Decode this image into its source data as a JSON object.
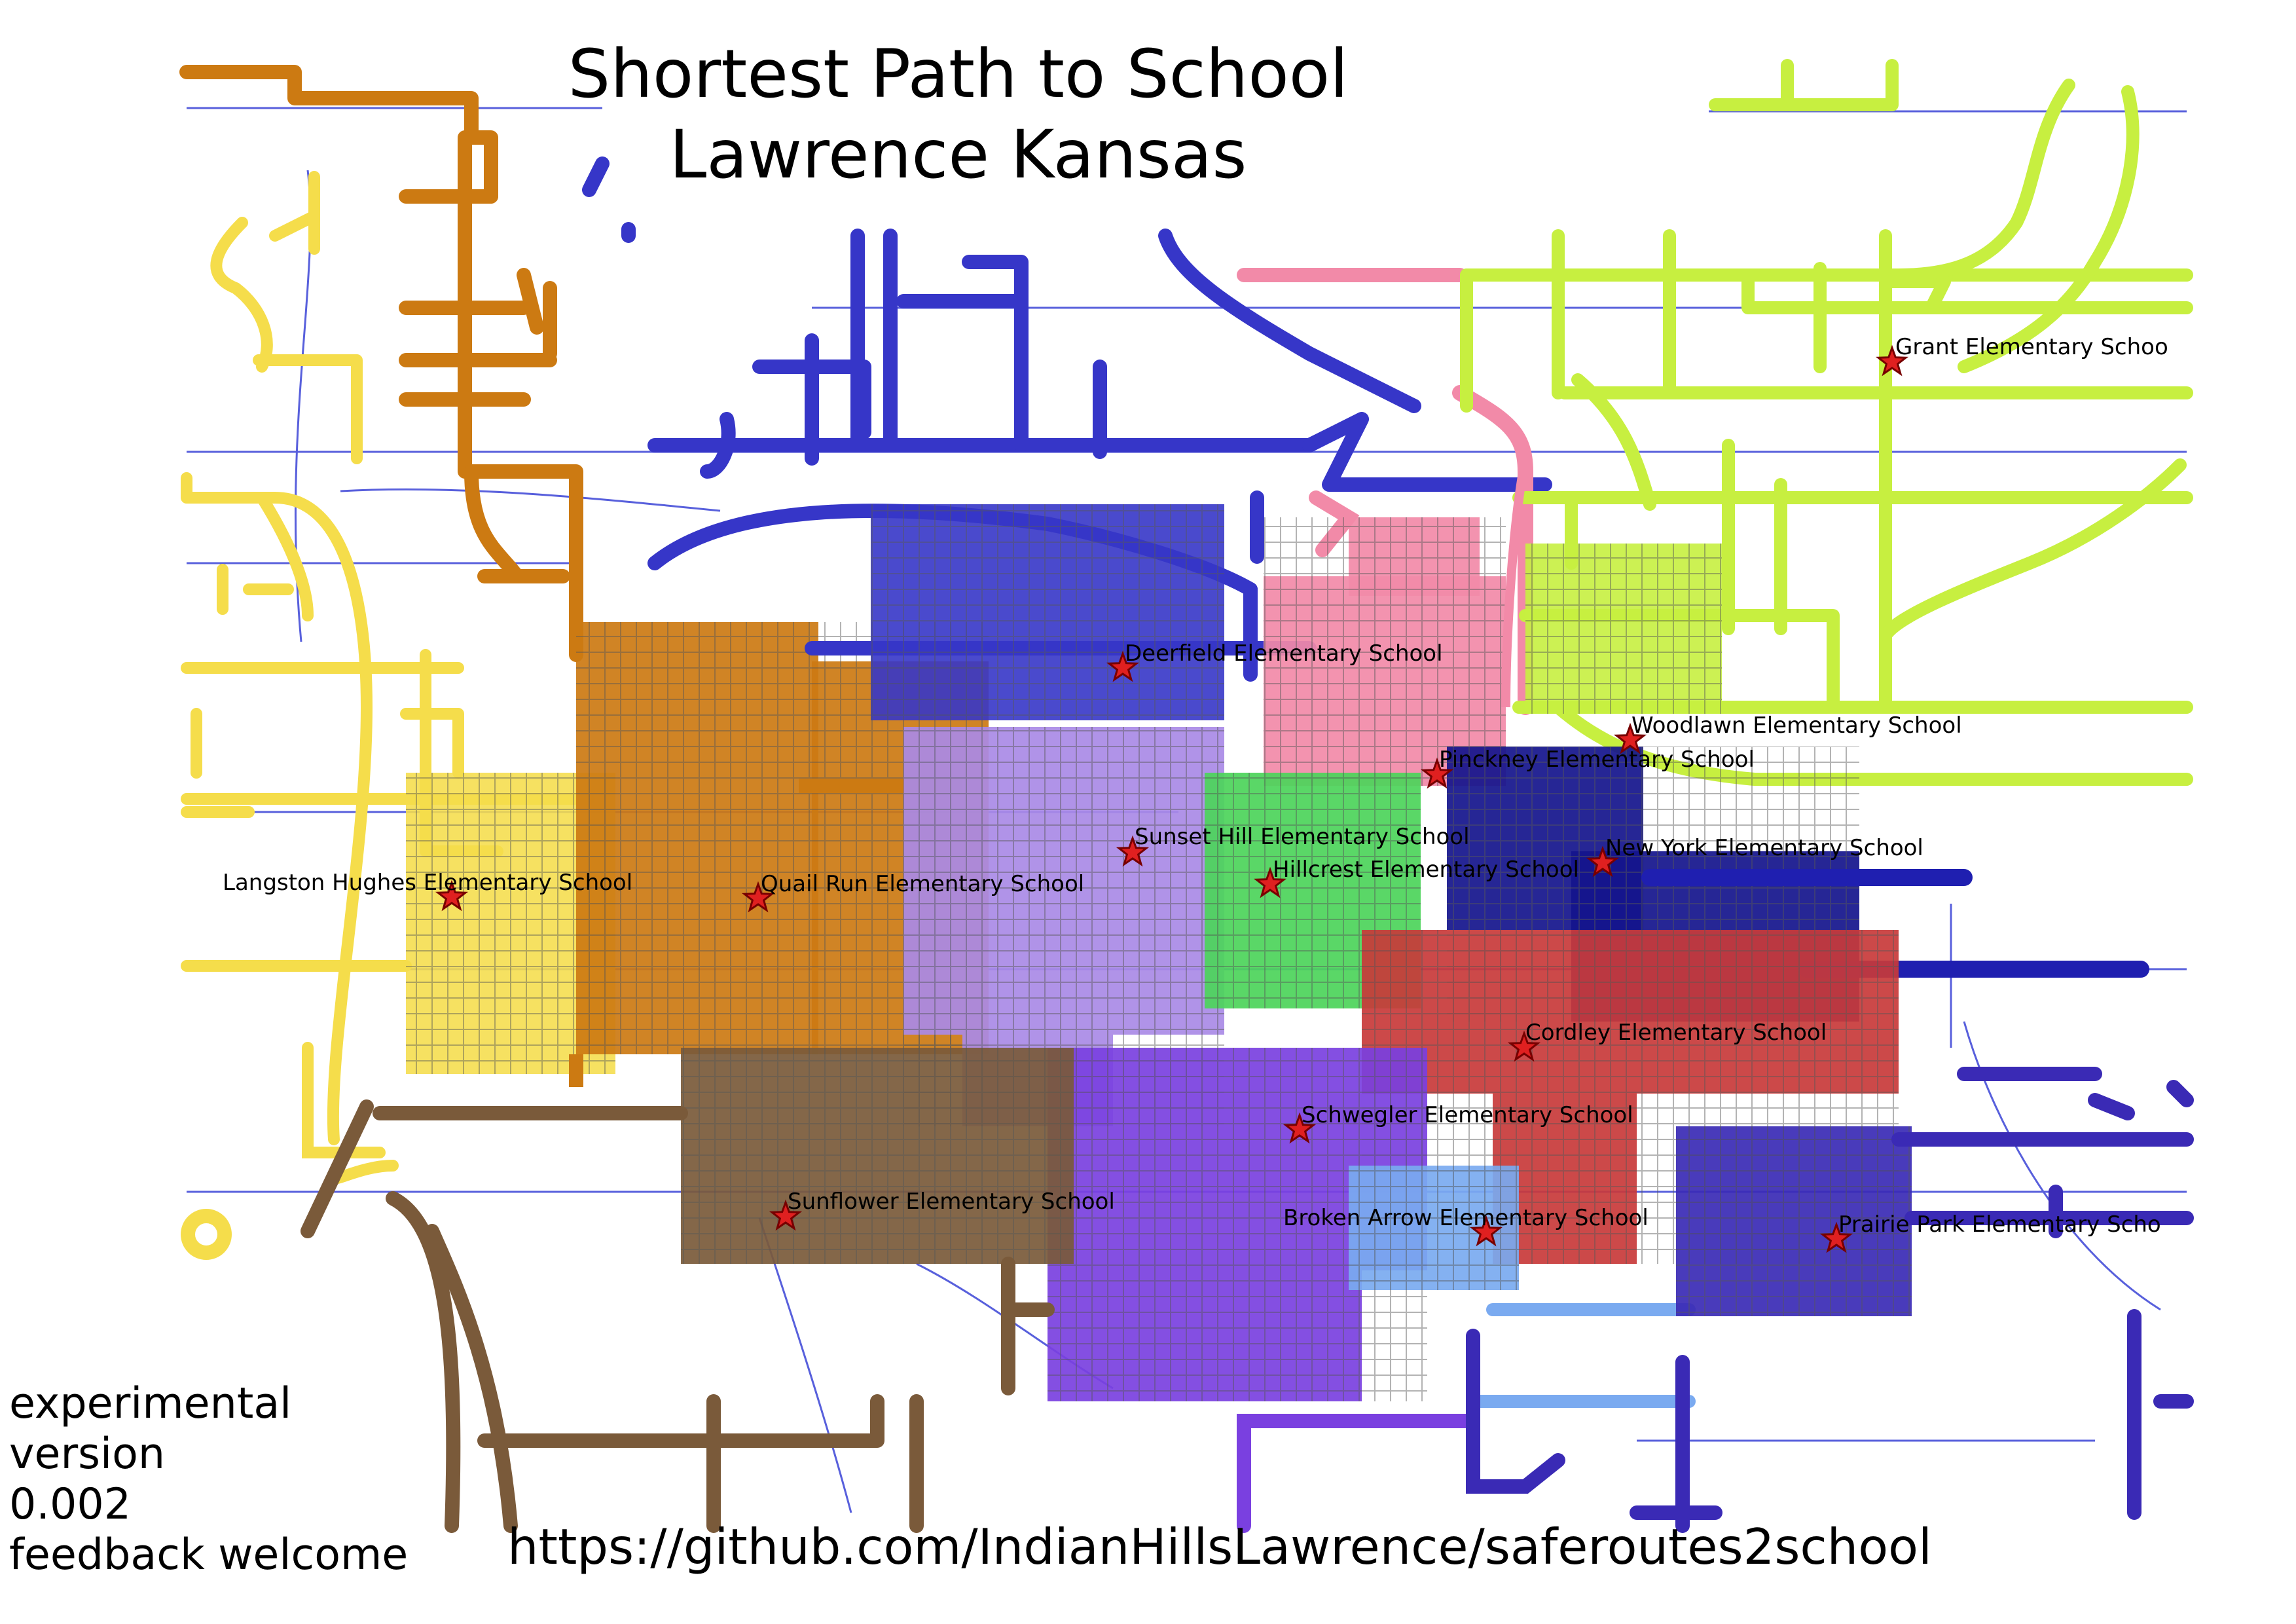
{
  "title": {
    "line1": "Shortest Path to School",
    "line2": "Lawrence Kansas"
  },
  "note": {
    "line1": "experimental",
    "line2": "version",
    "line3": "0.002",
    "line4": "feedback welcome"
  },
  "footer": {
    "url": "https://github.com/IndianHillsLawrence/saferoutes2school"
  },
  "legend_colors": {
    "star": "#e02020",
    "road_lines": "#3b44d6",
    "Langston Hughes": "#f5dd4b",
    "Quail Run": "#cc7a12",
    "Deerfield": "#3636c8",
    "Sunset Hill": "#a98ae6",
    "Hillcrest": "#4cd45a",
    "Pinckney": "#f28aa8",
    "New York": "#14148c",
    "Woodlawn": "#c7ef40",
    "Cordley": "#c83a3a",
    "Schwegler": "#7a40e0",
    "Broken Arrow": "#7aaaf0",
    "Prairie Park": "#3a2ab5",
    "Sunflower": "#7a5a3a"
  },
  "schools": [
    {
      "name": "Grant Elementary Schoo",
      "icon": "star-icon"
    },
    {
      "name": "Deerfield Elementary School",
      "icon": "star-icon"
    },
    {
      "name": "Woodlawn Elementary School",
      "icon": "star-icon"
    },
    {
      "name": "Pinckney Elementary School",
      "icon": "star-icon"
    },
    {
      "name": "Sunset Hill Elementary School",
      "icon": "star-icon"
    },
    {
      "name": "New York Elementary School",
      "icon": "star-icon"
    },
    {
      "name": "Langston Hughes Elementary School",
      "icon": "star-icon"
    },
    {
      "name": "Quail Run Elementary School",
      "icon": "star-icon"
    },
    {
      "name": "Hillcrest Elementary School",
      "icon": "star-icon"
    },
    {
      "name": "Cordley Elementary School",
      "icon": "star-icon"
    },
    {
      "name": "Schwegler Elementary School",
      "icon": "star-icon"
    },
    {
      "name": "Sunflower Elementary School",
      "icon": "star-icon"
    },
    {
      "name": "Broken Arrow Elementary School",
      "icon": "star-icon"
    },
    {
      "name": "Prairie Park Elementary Scho",
      "icon": "star-icon"
    }
  ]
}
